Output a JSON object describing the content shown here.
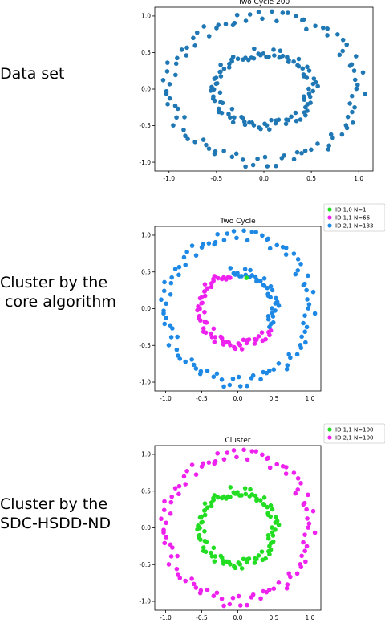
{
  "labels": {
    "dataset": "Data set",
    "core": "Cluster by the\n core algorithm",
    "sdc": "Cluster by the\nSDC-HSDD-ND"
  },
  "chart_data": [
    {
      "type": "scatter",
      "title": "Two Cycle 200",
      "xlim": [
        -1.15,
        1.15
      ],
      "ylim": [
        -1.12,
        1.12
      ],
      "xticks": [
        "-1.0",
        "-0.5",
        "0.0",
        "0.5",
        "1.0"
      ],
      "yticks": [
        "1.0",
        "0.5",
        "0.0",
        "-0.5",
        "-1.0"
      ],
      "series": [
        {
          "color": "#1f77b4",
          "points_inner": 100,
          "points_outer": 100
        }
      ]
    },
    {
      "type": "scatter",
      "title": "Two Cycle",
      "xlim": [
        -1.15,
        1.15
      ],
      "ylim": [
        -1.12,
        1.12
      ],
      "xticks": [
        "-1.0",
        "-0.5",
        "0.0",
        "0.5",
        "1.0"
      ],
      "yticks": [
        "1.0",
        "0.5",
        "0.0",
        "-0.5",
        "-1.0"
      ],
      "legend": [
        {
          "label": "ID,1,0 N=1",
          "color": "#22dd22"
        },
        {
          "label": "ID,1,1 N=66",
          "color": "#ee22ee"
        },
        {
          "label": "ID,2,1 N=133",
          "color": "#1e88e5"
        }
      ],
      "series": [
        {
          "name": "ID,1,0 N=1",
          "color": "#22dd22",
          "count": 1
        },
        {
          "name": "ID,1,1 N=66",
          "color": "#ee22ee",
          "count": 66
        },
        {
          "name": "ID,2,1 N=133",
          "color": "#1e88e5",
          "count": 133
        }
      ]
    },
    {
      "type": "scatter",
      "title": "Cluster",
      "xlim": [
        -1.15,
        1.15
      ],
      "ylim": [
        -1.12,
        1.12
      ],
      "xticks": [
        "-1.0",
        "-0.5",
        "0.0",
        "0.5",
        "1.0"
      ],
      "yticks": [
        "1.0",
        "0.5",
        "0.0",
        "-0.5",
        "-1.0"
      ],
      "legend": [
        {
          "label": "ID,1,1 N=100",
          "color": "#22dd22"
        },
        {
          "label": "ID,2,1 N=100",
          "color": "#ee22ee"
        }
      ],
      "series": [
        {
          "name": "ID,1,1 N=100",
          "color": "#22dd22",
          "count": 100
        },
        {
          "name": "ID,2,1 N=100",
          "color": "#ee22ee",
          "count": 100
        }
      ]
    }
  ]
}
